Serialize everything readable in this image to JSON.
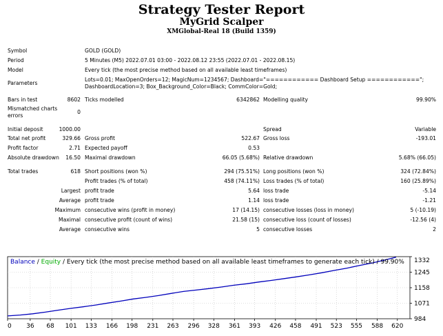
{
  "report": {
    "title": "Strategy Tester Report",
    "subtitle": "MyGrid Scalper",
    "account": "XMGlobal-Real 18 (Build 1359)"
  },
  "info": {
    "symbol_label": "Symbol",
    "symbol_value": "GOLD (GOLD)",
    "period_label": "Period",
    "period_value": "5 Minutes (M5) 2022.07.01 03:00 - 2022.08.12 23:55 (2022.07.01 - 2022.08.15)",
    "model_label": "Model",
    "model_value": "Every tick (the most precise method based on all available least timeframes)",
    "params_label": "Parameters",
    "params_line1": "Lots=0.01; MaxOpenOrders=12; MagicNum=1234567; Dashboard=\"============ Dashboard Setup ============\";",
    "params_line2": "DashboardLocation=3; Box_Background_Color=Black; CommColor=Gold;",
    "bars_label": "Bars in test",
    "bars_value": "8602",
    "ticks_label": "Ticks modelled",
    "ticks_value": "6342862",
    "quality_label": "Modelling quality",
    "quality_value": "99.90%",
    "mismatch_label_1": "Mismatched charts",
    "mismatch_label_2": "errors",
    "mismatch_value": "0"
  },
  "stats": {
    "initial_deposit_label": "Initial deposit",
    "initial_deposit_value": "1000.00",
    "spread_label": "Spread",
    "spread_value": "Variable",
    "total_net_profit_label": "Total net profit",
    "total_net_profit_value": "329.66",
    "gross_profit_label": "Gross profit",
    "gross_profit_value": "522.67",
    "gross_loss_label": "Gross loss",
    "gross_loss_value": "-193.01",
    "profit_factor_label": "Profit factor",
    "profit_factor_value": "2.71",
    "expected_payoff_label": "Expected payoff",
    "expected_payoff_value": "0.53",
    "abs_drawdown_label": "Absolute drawdown",
    "abs_drawdown_value": "16.50",
    "max_drawdown_label": "Maximal drawdown",
    "max_drawdown_value": "66.05 (5.68%)",
    "rel_drawdown_label": "Relative drawdown",
    "rel_drawdown_value": "5.68% (66.05)",
    "total_trades_label": "Total trades",
    "total_trades_value": "618",
    "short_label": "Short positions (won %)",
    "short_value": "294 (75.51%)",
    "long_label": "Long positions (won %)",
    "long_value": "324 (72.84%)",
    "profit_trades_label": "Profit trades (% of total)",
    "profit_trades_value": "458 (74.11%)",
    "loss_trades_label": "Loss trades (% of total)",
    "loss_trades_value": "160 (25.89%)",
    "largest_label": "Largest",
    "largest_profit_label": "profit trade",
    "largest_profit_value": "5.64",
    "largest_loss_label": "loss trade",
    "largest_loss_value": "-5.14",
    "average_label": "Average",
    "average_profit_label": "profit trade",
    "average_profit_value": "1.14",
    "average_loss_label": "loss trade",
    "average_loss_value": "-1.21",
    "maximum_label": "Maximum",
    "max_cons_wins_label": "consecutive wins (profit in money)",
    "max_cons_wins_value": "17 (14.15)",
    "max_cons_losses_label": "consecutive losses (loss in money)",
    "max_cons_losses_value": "5 (-10.19)",
    "maximal_label": "Maximal",
    "maximal_cons_profit_label": "consecutive profit (count of wins)",
    "maximal_cons_profit_value": "21.58 (15)",
    "maximal_cons_loss_label": "consecutive loss (count of losses)",
    "maximal_cons_loss_value": "-12.56 (4)",
    "average2_label": "Average",
    "avg_cons_wins_label": "consecutive wins",
    "avg_cons_wins_value": "5",
    "avg_cons_losses_label": "consecutive losses",
    "avg_cons_losses_value": "2"
  },
  "chart_data": {
    "type": "line",
    "legend_balance": "Balance",
    "legend_sep": " / ",
    "legend_equity": "Equity",
    "legend_rest": " / Every tick (the most precise method based on all available least timeframes to generate each tick) / 99.90%",
    "x_ticks": [
      "0",
      "36",
      "68",
      "101",
      "133",
      "166",
      "198",
      "231",
      "263",
      "296",
      "328",
      "361",
      "393",
      "426",
      "458",
      "491",
      "523",
      "555",
      "588",
      "620"
    ],
    "y_ticks": [
      "1332",
      "1245",
      "1158",
      "1071",
      "984"
    ],
    "ylim": [
      984,
      1332
    ],
    "xlim": [
      0,
      640
    ],
    "grid": true,
    "colors": {
      "balance": "#0000bb",
      "equity": "#00aa00",
      "background": "#ffffff",
      "grid": "#c0c0c0"
    },
    "series": [
      {
        "name": "Balance",
        "x": [
          0,
          20,
          40,
          60,
          80,
          100,
          120,
          140,
          160,
          180,
          200,
          220,
          240,
          260,
          280,
          300,
          320,
          340,
          360,
          380,
          400,
          420,
          440,
          460,
          480,
          500,
          520,
          540,
          560,
          580,
          600,
          618
        ],
        "y": [
          1000,
          1005,
          1012,
          1021,
          1032,
          1042,
          1051,
          1061,
          1072,
          1083,
          1095,
          1104,
          1114,
          1126,
          1137,
          1145,
          1153,
          1162,
          1172,
          1180,
          1190,
          1199,
          1209,
          1219,
          1230,
          1242,
          1255,
          1268,
          1283,
          1297,
          1313,
          1329
        ]
      }
    ]
  }
}
